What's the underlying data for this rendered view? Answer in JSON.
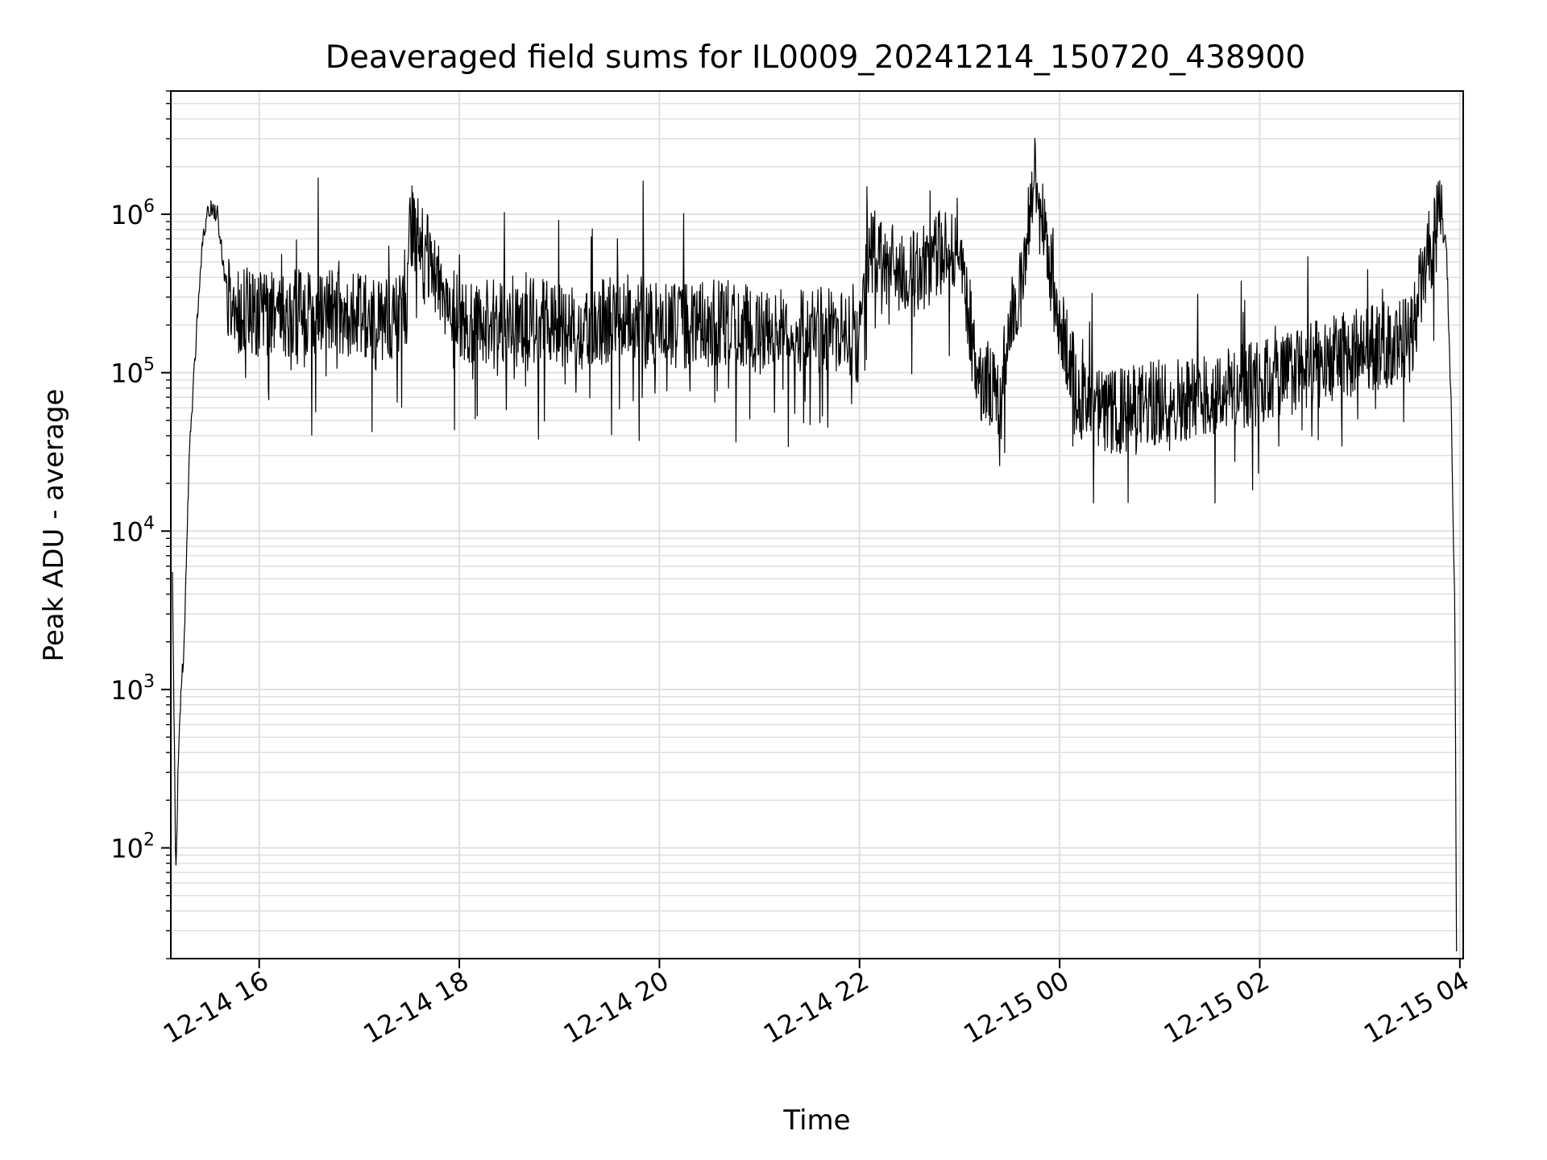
{
  "chart_data": {
    "type": "line",
    "title": "Deaveraged field sums for IL0009_20241214_150720_438900",
    "xlabel": "Time",
    "ylabel": "Peak ADU - average",
    "yscale": "log",
    "xlim": [
      "2024-12-14 15:07",
      "2024-12-15 04:02"
    ],
    "ylim": [
      20,
      6000000
    ],
    "x_ticks": [
      {
        "value": "2024-12-14 16:00",
        "label": "12-14 16"
      },
      {
        "value": "2024-12-14 18:00",
        "label": "12-14 18"
      },
      {
        "value": "2024-12-14 20:00",
        "label": "12-14 20"
      },
      {
        "value": "2024-12-14 22:00",
        "label": "12-14 22"
      },
      {
        "value": "2024-12-15 00:00",
        "label": "12-15 00"
      },
      {
        "value": "2024-12-15 02:00",
        "label": "12-15 02"
      },
      {
        "value": "2024-12-15 04:00",
        "label": "12-15 04"
      }
    ],
    "y_ticks": [
      {
        "value": 100,
        "base": "10",
        "exp": "2"
      },
      {
        "value": 1000,
        "base": "10",
        "exp": "3"
      },
      {
        "value": 10000,
        "base": "10",
        "exp": "4"
      },
      {
        "value": 100000,
        "base": "10",
        "exp": "5"
      },
      {
        "value": 1000000,
        "base": "10",
        "exp": "6"
      }
    ],
    "grid": true,
    "line_color": "#000000",
    "grid_color": "#e0e0e0",
    "series": [
      {
        "x": [
          "2024-12-14 15:08",
          "2024-12-14 15:10",
          "2024-12-14 15:12",
          "2024-12-14 15:15",
          "2024-12-14 15:18",
          "2024-12-14 15:22",
          "2024-12-14 15:26",
          "2024-12-14 15:30",
          "2024-12-14 15:35",
          "2024-12-14 15:40",
          "2024-12-14 15:45",
          "2024-12-14 15:52",
          "2024-12-14 16:00",
          "2024-12-14 16:30",
          "2024-12-14 17:00",
          "2024-12-14 17:28",
          "2024-12-14 17:30",
          "2024-12-14 18:00",
          "2024-12-14 18:30",
          "2024-12-14 19:00",
          "2024-12-14 19:20",
          "2024-12-14 19:45",
          "2024-12-14 20:00",
          "2024-12-14 20:45",
          "2024-12-14 21:00",
          "2024-12-14 21:30",
          "2024-12-14 22:00",
          "2024-12-14 22:05",
          "2024-12-14 22:30",
          "2024-12-14 23:00",
          "2024-12-14 23:10",
          "2024-12-14 23:25",
          "2024-12-14 23:30",
          "2024-12-14 23:35",
          "2024-12-14 23:45",
          "2024-12-15 00:00",
          "2024-12-15 00:15",
          "2024-12-15 00:30",
          "2024-12-15 01:00",
          "2024-12-15 01:30",
          "2024-12-15 02:00",
          "2024-12-15 02:30",
          "2024-12-15 03:00",
          "2024-12-15 03:30",
          "2024-12-15 03:40",
          "2024-12-15 03:48",
          "2024-12-15 03:52",
          "2024-12-15 03:55",
          "2024-12-15 03:57",
          "2024-12-15 03:58"
        ],
        "y": [
          5000,
          70,
          600,
          2000,
          30000,
          150000,
          700000,
          1100000,
          1000000,
          350000,
          250000,
          250000,
          230000,
          240000,
          230000,
          220000,
          900000,
          210000,
          220000,
          200000,
          200000,
          230000,
          190000,
          210000,
          180000,
          190000,
          170000,
          600000,
          400000,
          700000,
          100000,
          70000,
          250000,
          250000,
          1800000,
          200000,
          60000,
          55000,
          65000,
          75000,
          85000,
          110000,
          140000,
          160000,
          500000,
          950000,
          600000,
          50000,
          3000,
          25
        ]
      }
    ]
  }
}
